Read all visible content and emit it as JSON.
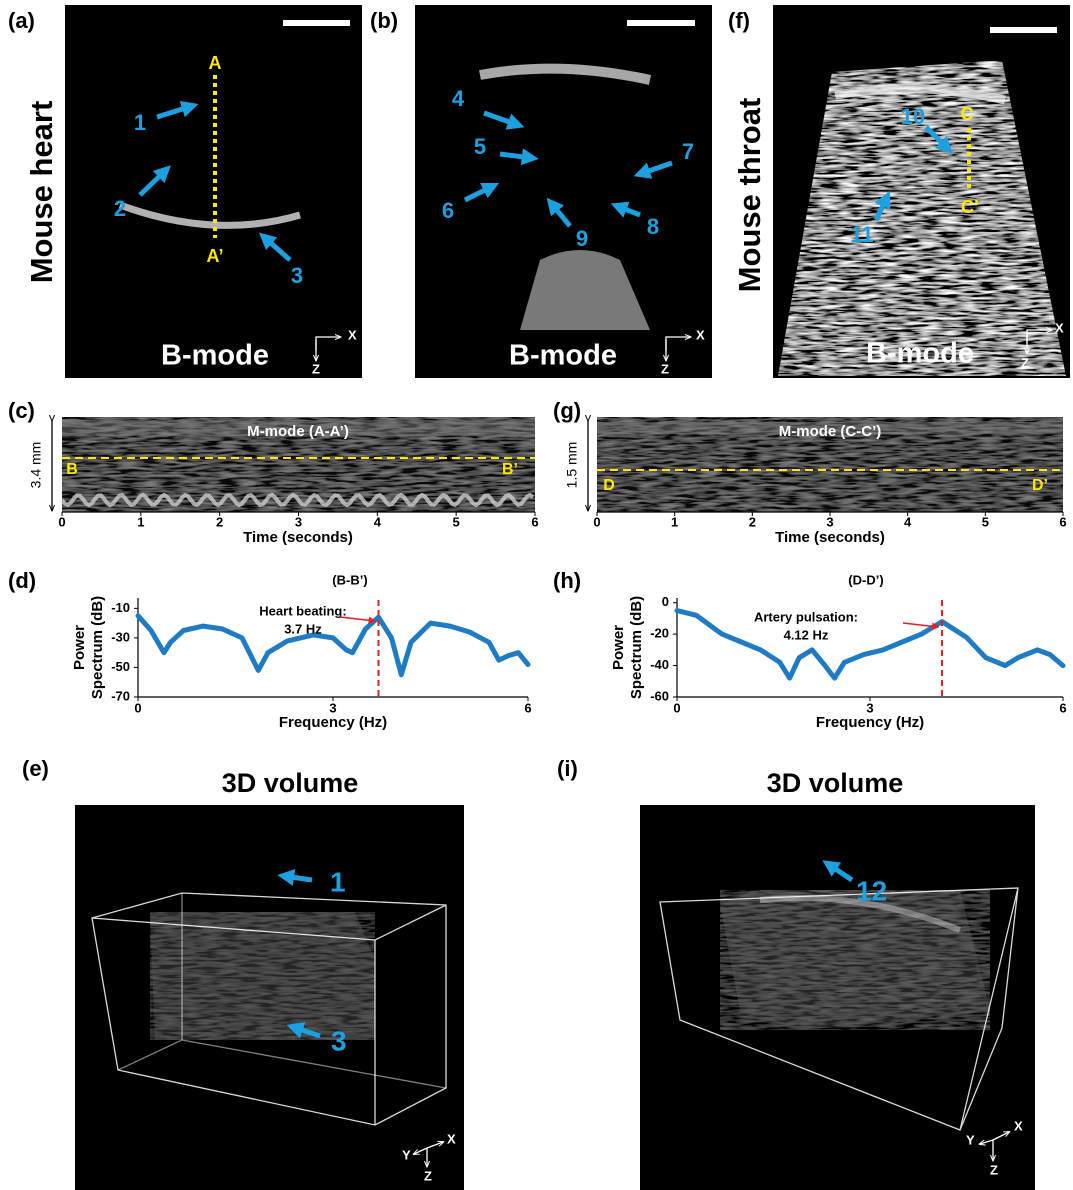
{
  "a": {
    "label": "(a)",
    "title": "Mouse heart",
    "mode": "B-mode",
    "line_ends": [
      "A",
      "A’"
    ],
    "arrows": [
      "1",
      "2",
      "3"
    ],
    "axis_labels": [
      "X",
      "Z"
    ]
  },
  "b": {
    "label": "(b)",
    "mode": "B-mode",
    "arrows": [
      "4",
      "5",
      "6",
      "7",
      "8",
      "9"
    ],
    "axis_labels": [
      "X",
      "Z"
    ]
  },
  "f": {
    "label": "(f)",
    "title": "Mouse throat",
    "mode": "B-mode",
    "line_ends": [
      "C",
      "C’"
    ],
    "arrows": [
      "10",
      "11"
    ],
    "axis_labels": [
      "X",
      "Z"
    ]
  },
  "c": {
    "label": "(c)",
    "title": "M-mode (A-A’)",
    "depth": "3.4 mm",
    "line_ends": [
      "B",
      "B’"
    ],
    "x_label": "Time (seconds)",
    "xlim": [
      0,
      6
    ],
    "xticks": [
      0,
      1,
      2,
      3,
      4,
      5,
      6
    ]
  },
  "g": {
    "label": "(g)",
    "title": "M-mode (C-C’)",
    "depth": "1.5 mm",
    "line_ends": [
      "D",
      "D’"
    ],
    "x_label": "Time (seconds)",
    "xlim": [
      0,
      6
    ],
    "xticks": [
      0,
      1,
      2,
      3,
      4,
      5,
      6
    ]
  },
  "d": {
    "type": "line",
    "label": "(d)",
    "title": "(B-B’)",
    "annotation": [
      "Heart beating:",
      "3.7 Hz"
    ],
    "peak_x": 3.7,
    "x_label": "Frequency (Hz)",
    "y_label": [
      "Power",
      "Spectrum (dB)"
    ],
    "color": "#1f7cc4",
    "xlim": [
      0,
      6
    ],
    "xticks": [
      0,
      3,
      6
    ],
    "ylim": [
      -70,
      -3
    ],
    "yticks": [
      -10,
      -30,
      -50,
      -70
    ],
    "x": [
      0,
      0.2,
      0.4,
      0.5,
      0.7,
      1.0,
      1.3,
      1.6,
      1.85,
      2.0,
      2.3,
      2.7,
      3.0,
      3.2,
      3.3,
      3.5,
      3.7,
      3.9,
      4.05,
      4.2,
      4.5,
      4.8,
      5.1,
      5.4,
      5.55,
      5.7,
      5.85,
      6.0
    ],
    "values": [
      -15,
      -25,
      -40,
      -33,
      -25,
      -22,
      -24,
      -30,
      -52,
      -40,
      -32,
      -28,
      -30,
      -38,
      -40,
      -24,
      -16,
      -30,
      -55,
      -33,
      -20,
      -22,
      -26,
      -33,
      -45,
      -42,
      -40,
      -48
    ]
  },
  "h": {
    "type": "line",
    "label": "(h)",
    "title": "(D-D’)",
    "annotation": [
      "Artery pulsation:",
      "4.12 Hz"
    ],
    "peak_x": 4.12,
    "x_label": "Frequency (Hz)",
    "y_label": [
      "Power",
      "Spectrum (dB)"
    ],
    "color": "#1f7cc4",
    "xlim": [
      0,
      6
    ],
    "xticks": [
      0,
      3,
      6
    ],
    "ylim": [
      -60,
      3
    ],
    "yticks": [
      0,
      -20,
      -40,
      -60
    ],
    "x": [
      0,
      0.3,
      0.7,
      1.0,
      1.3,
      1.6,
      1.75,
      1.9,
      2.1,
      2.3,
      2.45,
      2.6,
      2.9,
      3.2,
      3.5,
      3.8,
      4.12,
      4.5,
      4.8,
      5.1,
      5.3,
      5.6,
      5.8,
      6.0
    ],
    "values": [
      -5,
      -8,
      -20,
      -25,
      -30,
      -38,
      -48,
      -35,
      -30,
      -40,
      -48,
      -38,
      -33,
      -30,
      -25,
      -20,
      -12,
      -22,
      -35,
      -40,
      -35,
      -30,
      -33,
      -40
    ]
  },
  "e": {
    "label": "(e)",
    "title": "3D volume",
    "arrows": [
      "1",
      "3"
    ],
    "axis_labels": [
      "Y",
      "X",
      "Z"
    ]
  },
  "i": {
    "label": "(i)",
    "title": "3D volume",
    "arrows": [
      "12"
    ],
    "axis_labels": [
      "Y",
      "X",
      "Z"
    ]
  }
}
